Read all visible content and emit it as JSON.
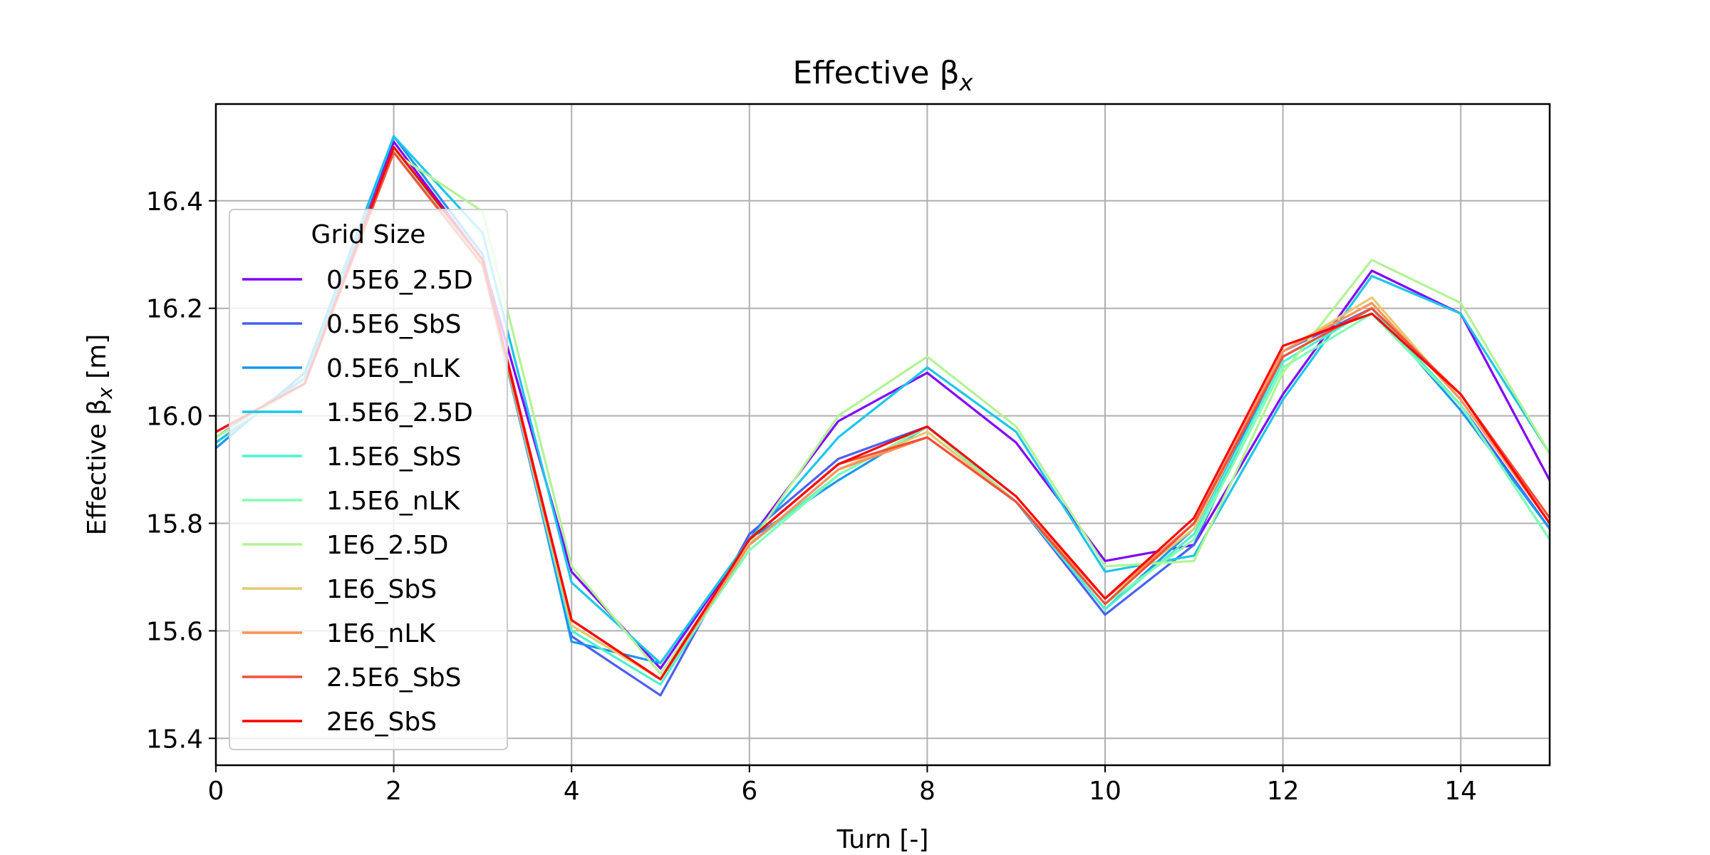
{
  "chart_data": {
    "type": "line",
    "title": "Effective β",
    "title_sub": "x",
    "xlabel": "Turn [-]",
    "ylabel_main": "Effective β",
    "ylabel_sub": "x",
    "ylabel_unit": " [m]",
    "xlim": [
      0,
      15
    ],
    "ylim": [
      15.35,
      16.58
    ],
    "xticks": [
      0,
      2,
      4,
      6,
      8,
      10,
      12,
      14
    ],
    "yticks": [
      15.4,
      15.6,
      15.8,
      16.0,
      16.2,
      16.4
    ],
    "ytick_labels": [
      "15.4",
      "15.6",
      "15.8",
      "16.0",
      "16.2",
      "16.4"
    ],
    "grid": true,
    "legend_title": "Grid Size",
    "legend_position": "left",
    "x": [
      0,
      1,
      2,
      3,
      4,
      5,
      6,
      7,
      8,
      9,
      10,
      11,
      12,
      13,
      14,
      15
    ],
    "series": [
      {
        "name": "0.5E6_2.5D",
        "color": "#8000ff",
        "values": [
          15.95,
          16.07,
          16.51,
          16.29,
          15.71,
          15.53,
          15.77,
          15.99,
          16.08,
          15.95,
          15.73,
          15.76,
          16.04,
          16.27,
          16.19,
          15.88
        ]
      },
      {
        "name": "0.5E6_SbS",
        "color": "#4a5ff5",
        "values": [
          15.96,
          16.07,
          16.5,
          16.28,
          15.59,
          15.48,
          15.78,
          15.92,
          15.98,
          15.84,
          15.63,
          15.76,
          16.12,
          16.2,
          16.02,
          15.79
        ]
      },
      {
        "name": "0.5E6_nLK",
        "color": "#1996f3",
        "values": [
          15.94,
          16.08,
          16.52,
          16.3,
          15.58,
          15.54,
          15.77,
          15.88,
          15.98,
          15.84,
          15.64,
          15.79,
          16.11,
          16.2,
          16.01,
          15.79
        ]
      },
      {
        "name": "1.5E6_2.5D",
        "color": "#1ac7e8",
        "values": [
          15.95,
          16.07,
          16.52,
          16.34,
          15.69,
          15.54,
          15.77,
          15.96,
          16.09,
          15.97,
          15.71,
          15.74,
          16.03,
          16.26,
          16.19,
          15.93
        ]
      },
      {
        "name": "1.5E6_SbS",
        "color": "#4cf2ce",
        "values": [
          15.96,
          16.06,
          16.5,
          16.28,
          15.6,
          15.5,
          15.76,
          15.89,
          15.98,
          15.84,
          15.64,
          15.78,
          16.1,
          16.2,
          16.02,
          15.77
        ]
      },
      {
        "name": "1.5E6_nLK",
        "color": "#80ffb4",
        "values": [
          15.96,
          16.06,
          16.5,
          16.28,
          15.61,
          15.51,
          15.75,
          15.89,
          15.98,
          15.84,
          15.65,
          15.77,
          16.09,
          16.19,
          16.02,
          15.77
        ]
      },
      {
        "name": "1E6_2.5D",
        "color": "#b2f396",
        "values": [
          15.96,
          16.06,
          16.49,
          16.38,
          15.72,
          15.52,
          15.76,
          16.0,
          16.11,
          15.98,
          15.72,
          15.73,
          16.08,
          16.29,
          16.21,
          15.93
        ]
      },
      {
        "name": "1E6_SbS",
        "color": "#e6c96e",
        "values": [
          15.97,
          16.06,
          16.49,
          16.28,
          15.61,
          15.51,
          15.76,
          15.9,
          15.97,
          15.84,
          15.66,
          15.79,
          16.12,
          16.22,
          16.03,
          15.8
        ]
      },
      {
        "name": "1E6_nLK",
        "color": "#ff9259",
        "values": [
          15.97,
          16.06,
          16.49,
          16.28,
          15.62,
          15.51,
          15.76,
          15.9,
          15.96,
          15.84,
          15.66,
          15.8,
          16.12,
          16.21,
          16.03,
          15.8
        ]
      },
      {
        "name": "2.5E6_SbS",
        "color": "#f34f3a",
        "values": [
          15.97,
          16.06,
          16.49,
          16.28,
          15.62,
          15.51,
          15.77,
          15.91,
          15.96,
          15.84,
          15.65,
          15.8,
          16.11,
          16.2,
          16.04,
          15.81
        ]
      },
      {
        "name": "2E6_SbS",
        "color": "#ff0000",
        "values": [
          15.97,
          16.06,
          16.5,
          16.29,
          15.62,
          15.51,
          15.77,
          15.91,
          15.98,
          15.85,
          15.66,
          15.81,
          16.13,
          16.19,
          16.04,
          15.8
        ]
      }
    ]
  }
}
